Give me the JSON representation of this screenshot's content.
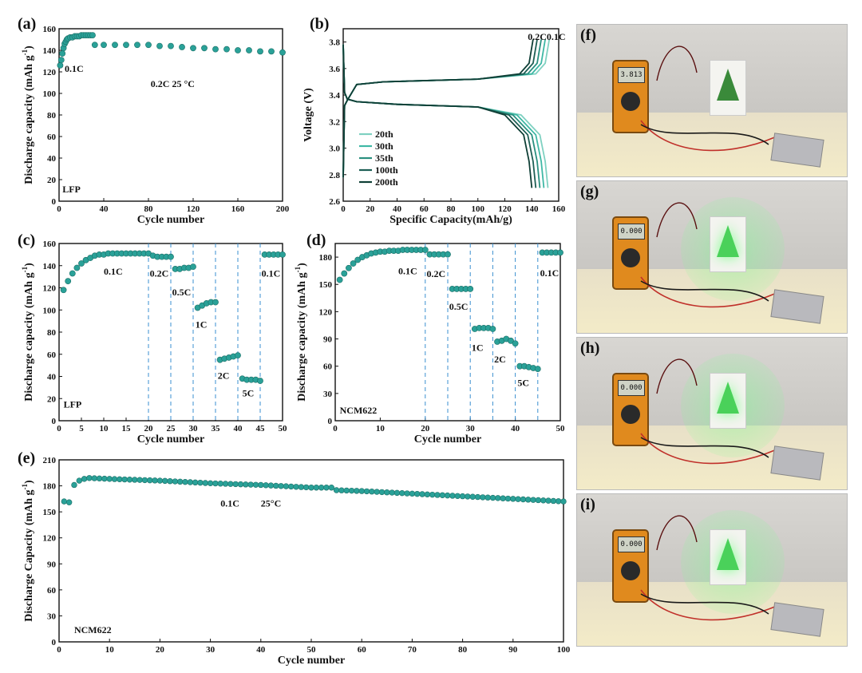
{
  "chart_data": [
    {
      "panel": "(a)",
      "type": "scatter",
      "xlabel": "Cycle number",
      "ylabel": "Discharge capacity (mAh g",
      "ylabel_sup": "-1",
      "xlim": [
        0,
        200
      ],
      "ylim": [
        0,
        160
      ],
      "xticks": [
        "0",
        "40",
        "80",
        "120",
        "160",
        "200"
      ],
      "yticks": [
        "0",
        "20",
        "40",
        "60",
        "80",
        "100",
        "120",
        "140",
        "160"
      ],
      "annotations": [
        "0.1C",
        "0.2C    25 °C",
        "LFP"
      ],
      "color": "#2aa198",
      "series": [
        {
          "x": [
            1,
            2,
            3,
            4,
            5,
            6,
            7,
            8,
            10,
            12,
            14,
            16,
            18,
            20,
            22,
            24,
            26,
            28,
            30
          ],
          "values": [
            126,
            131,
            137,
            142,
            146,
            148,
            150,
            151,
            152,
            152,
            153,
            153,
            153,
            154,
            154,
            154,
            154,
            154,
            154
          ]
        },
        {
          "x": [
            32,
            40,
            50,
            60,
            70,
            80,
            90,
            100,
            110,
            120,
            130,
            140,
            150,
            160,
            170,
            180,
            190,
            200
          ],
          "values": [
            145,
            145,
            145,
            145,
            145,
            145,
            144,
            144,
            143,
            142,
            142,
            141,
            141,
            140,
            140,
            139,
            139,
            138
          ]
        }
      ]
    },
    {
      "panel": "(b)",
      "type": "line",
      "xlabel": "Specific Capacity(mAh/g)",
      "ylabel": "Voltage (V)",
      "xlim": [
        0,
        160
      ],
      "ylim": [
        2.6,
        3.9
      ],
      "xticks": [
        "0",
        "20",
        "40",
        "60",
        "80",
        "100",
        "120",
        "140",
        "160"
      ],
      "yticks": [
        "2.6",
        "2.8",
        "3.0",
        "3.2",
        "3.4",
        "3.6",
        "3.8"
      ],
      "annotations": [
        "0.2C",
        "0.1C"
      ],
      "series": [
        {
          "name": "20th",
          "color": "#7fd1c1",
          "charge_end": 153,
          "discharge_end": 152
        },
        {
          "name": "30th",
          "color": "#3fb8a5",
          "charge_end": 150,
          "discharge_end": 149
        },
        {
          "name": "35th",
          "color": "#2a9080",
          "charge_end": 147,
          "discharge_end": 146
        },
        {
          "name": "100th",
          "color": "#1e5f55",
          "charge_end": 144,
          "discharge_end": 143
        },
        {
          "name": "200th",
          "color": "#0f3f36",
          "charge_end": 141,
          "discharge_end": 140
        }
      ]
    },
    {
      "panel": "(c)",
      "type": "scatter",
      "xlabel": "Cycle number",
      "ylabel": "Discharge capacity (mAh g",
      "ylabel_sup": "-1",
      "xlim": [
        0,
        50
      ],
      "ylim": [
        0,
        160
      ],
      "xticks": [
        "0",
        "5",
        "10",
        "15",
        "20",
        "25",
        "30",
        "35",
        "40",
        "45",
        "50"
      ],
      "yticks": [
        "0",
        "20",
        "40",
        "60",
        "80",
        "100",
        "120",
        "140",
        "160"
      ],
      "dividers": [
        20,
        25,
        30,
        35,
        40,
        45
      ],
      "annotations": [
        "0.1C",
        "0.2C",
        "0.5C",
        "1C",
        "2C",
        "5C",
        "0.1C",
        "LFP"
      ],
      "x": [
        1,
        2,
        3,
        4,
        5,
        6,
        7,
        8,
        9,
        10,
        11,
        12,
        13,
        14,
        15,
        16,
        17,
        18,
        19,
        20,
        21,
        22,
        23,
        24,
        25,
        26,
        27,
        28,
        29,
        30,
        31,
        32,
        33,
        34,
        35,
        36,
        37,
        38,
        39,
        40,
        41,
        42,
        43,
        44,
        45,
        46,
        47,
        48,
        49,
        50
      ],
      "values": [
        118,
        126,
        133,
        138,
        142,
        145,
        147,
        149,
        150,
        150,
        151,
        151,
        151,
        151,
        151,
        151,
        151,
        151,
        151,
        151,
        149,
        148,
        148,
        148,
        148,
        137,
        137,
        138,
        138,
        139,
        102,
        104,
        106,
        107,
        107,
        55,
        56,
        57,
        58,
        59,
        38,
        37,
        37,
        37,
        36,
        150,
        150,
        150,
        150,
        150
      ]
    },
    {
      "panel": "(d)",
      "type": "scatter",
      "xlabel": "Cycle number",
      "ylabel": "Discharge capacity (mAh g",
      "ylabel_sup": "-1",
      "xlim": [
        0,
        50
      ],
      "ylim": [
        0,
        195
      ],
      "xticks": [
        "0",
        "10",
        "20",
        "30",
        "40",
        "50"
      ],
      "yticks": [
        "0",
        "30",
        "60",
        "90",
        "120",
        "150",
        "180"
      ],
      "dividers": [
        20,
        25,
        30,
        35,
        40,
        45
      ],
      "annotations": [
        "0.1C",
        "0.2C",
        "0.5C",
        "1C",
        "2C",
        "5C",
        "0.1C",
        "NCM622"
      ],
      "x": [
        1,
        2,
        3,
        4,
        5,
        6,
        7,
        8,
        9,
        10,
        11,
        12,
        13,
        14,
        15,
        16,
        17,
        18,
        19,
        20,
        21,
        22,
        23,
        24,
        25,
        26,
        27,
        28,
        29,
        30,
        31,
        32,
        33,
        34,
        35,
        36,
        37,
        38,
        39,
        40,
        41,
        42,
        43,
        44,
        45,
        46,
        47,
        48,
        49,
        50
      ],
      "values": [
        155,
        162,
        168,
        173,
        177,
        180,
        182,
        184,
        185,
        186,
        186,
        187,
        187,
        187,
        188,
        188,
        188,
        188,
        188,
        188,
        183,
        183,
        183,
        183,
        183,
        145,
        145,
        145,
        145,
        145,
        101,
        102,
        102,
        102,
        101,
        87,
        88,
        90,
        88,
        85,
        60,
        60,
        59,
        58,
        57,
        185,
        185,
        185,
        185,
        185
      ]
    },
    {
      "panel": "(e)",
      "type": "scatter",
      "xlabel": "Cycle number",
      "ylabel": "Discharge Capacity (mAh g",
      "ylabel_sup": "-1",
      "xlim": [
        0,
        100
      ],
      "ylim": [
        0,
        210
      ],
      "xticks": [
        "0",
        "10",
        "20",
        "30",
        "40",
        "50",
        "60",
        "70",
        "80",
        "90",
        "100"
      ],
      "yticks": [
        "0",
        "30",
        "60",
        "90",
        "120",
        "150",
        "180",
        "210"
      ],
      "annotations": [
        "0.1C",
        "25°C",
        "NCM622"
      ],
      "x_start": 1,
      "x_end": 100,
      "values_sample": [
        [
          1,
          162
        ],
        [
          2,
          161
        ],
        [
          3,
          181
        ],
        [
          4,
          186
        ],
        [
          5,
          188
        ],
        [
          6,
          189
        ],
        [
          10,
          188
        ],
        [
          20,
          186
        ],
        [
          30,
          183
        ],
        [
          40,
          181
        ],
        [
          50,
          178
        ],
        [
          54,
          178
        ],
        [
          55,
          175
        ],
        [
          60,
          174
        ],
        [
          70,
          171
        ],
        [
          80,
          168
        ],
        [
          90,
          165
        ],
        [
          100,
          162
        ]
      ]
    }
  ],
  "photos": [
    {
      "label": "(f)",
      "meter_reading": "3.813",
      "light": "off"
    },
    {
      "label": "(g)",
      "meter_reading": "0.000",
      "light": "on"
    },
    {
      "label": "(h)",
      "meter_reading": "0.000",
      "light": "on"
    },
    {
      "label": "(i)",
      "meter_reading": "0.000",
      "light": "on"
    }
  ]
}
